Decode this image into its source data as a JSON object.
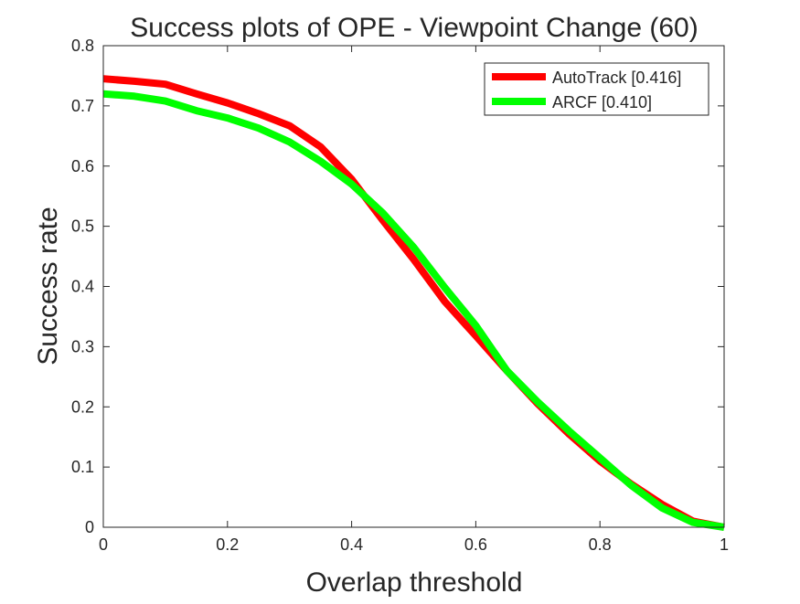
{
  "chart_data": {
    "type": "line",
    "title": "Success plots of OPE - Viewpoint Change (60)",
    "xlabel": "Overlap threshold",
    "ylabel": "Success rate",
    "xlim": [
      0,
      1
    ],
    "ylim": [
      0,
      0.8
    ],
    "xticks": [
      "0",
      "0.2",
      "0.4",
      "0.6",
      "0.8",
      "1"
    ],
    "yticks": [
      "0",
      "0.1",
      "0.2",
      "0.3",
      "0.4",
      "0.5",
      "0.6",
      "0.7",
      "0.8"
    ],
    "grid": false,
    "legend_position": "top-right",
    "x": [
      0,
      0.05,
      0.1,
      0.15,
      0.2,
      0.25,
      0.3,
      0.35,
      0.4,
      0.45,
      0.5,
      0.55,
      0.6,
      0.65,
      0.7,
      0.75,
      0.8,
      0.85,
      0.9,
      0.95,
      1.0
    ],
    "series": [
      {
        "name": "AutoTrack [0.416]",
        "color": "#ff0000",
        "values": [
          0.745,
          0.741,
          0.736,
          0.72,
          0.705,
          0.687,
          0.667,
          0.632,
          0.578,
          0.51,
          0.445,
          0.375,
          0.318,
          0.26,
          0.205,
          0.155,
          0.11,
          0.072,
          0.038,
          0.01,
          0.0
        ]
      },
      {
        "name": "ARCF [0.410]",
        "color": "#00ff00",
        "values": [
          0.72,
          0.716,
          0.708,
          0.692,
          0.68,
          0.663,
          0.64,
          0.608,
          0.57,
          0.522,
          0.465,
          0.398,
          0.335,
          0.26,
          0.208,
          0.16,
          0.115,
          0.07,
          0.032,
          0.008,
          0.0
        ]
      }
    ]
  }
}
